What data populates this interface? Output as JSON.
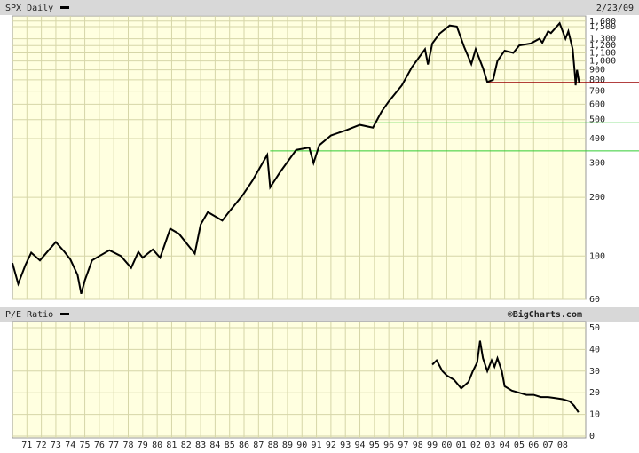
{
  "chart_data": [
    {
      "type": "line",
      "title": "SPX Daily",
      "date": "2/23/09",
      "log_y": true,
      "grid": true,
      "series": [
        {
          "name": "SPX Daily",
          "color": "#000000",
          "x": [
            1970.0,
            1970.4,
            1970.9,
            1971.3,
            1971.9,
            1972.5,
            1973.0,
            1973.6,
            1974.0,
            1974.5,
            1974.75,
            1975.0,
            1975.5,
            1976.0,
            1976.7,
            1977.5,
            1978.2,
            1978.7,
            1979.0,
            1979.7,
            1980.2,
            1980.9,
            1981.5,
            1982.6,
            1983.0,
            1983.5,
            1984.5,
            1985.0,
            1985.9,
            1986.6,
            1987.6,
            1987.8,
            1988.5,
            1989.6,
            1990.5,
            1990.8,
            1991.2,
            1992.0,
            1993.0,
            1994.0,
            1994.9,
            1995.5,
            1996.0,
            1996.9,
            1997.6,
            1998.5,
            1998.7,
            1999.0,
            1999.5,
            2000.2,
            2000.7,
            2001.2,
            2001.7,
            2002.0,
            2002.5,
            2002.8,
            2003.2,
            2003.5,
            2004.0,
            2004.6,
            2005.0,
            2005.8,
            2006.4,
            2006.6,
            2007.0,
            2007.2,
            2007.8,
            2008.2,
            2008.4,
            2008.7,
            2008.85,
            2008.9,
            2009.0,
            2009.15
          ],
          "values": [
            92,
            72,
            90,
            104,
            95,
            107,
            118,
            105,
            96,
            80,
            64,
            75,
            95,
            100,
            107,
            100,
            87,
            105,
            98,
            108,
            98,
            138,
            130,
            103,
            145,
            168,
            152,
            170,
            205,
            245,
            330,
            225,
            270,
            350,
            360,
            300,
            370,
            415,
            440,
            470,
            455,
            550,
            620,
            750,
            930,
            1150,
            960,
            1230,
            1380,
            1520,
            1500,
            1180,
            965,
            1150,
            920,
            780,
            800,
            1000,
            1130,
            1100,
            1200,
            1230,
            1300,
            1240,
            1420,
            1390,
            1560,
            1300,
            1420,
            1150,
            850,
            750,
            900,
            770
          ]
        }
      ],
      "xlim": [
        1970,
        2009.6
      ],
      "xticks": [
        1971,
        1972,
        1973,
        1974,
        1975,
        1976,
        1977,
        1978,
        1979,
        1980,
        1981,
        1982,
        1983,
        1984,
        1985,
        1986,
        1987,
        1988,
        1989,
        1990,
        1991,
        1992,
        1993,
        1994,
        1995,
        1996,
        1997,
        1998,
        1999,
        2000,
        2001,
        2002,
        2003,
        2004,
        2005,
        2006,
        2007,
        2008
      ],
      "ylim": [
        60,
        1700
      ],
      "yticks": [
        60,
        100,
        200,
        300,
        400,
        500,
        600,
        700,
        800,
        900,
        {
          "value": 1000,
          "label": "1,000"
        },
        {
          "value": 1100,
          "label": "1,100"
        },
        {
          "value": 1200,
          "label": "1,200"
        },
        {
          "value": 1300,
          "label": "1,300"
        },
        {
          "value": 1500,
          "label": "1,500"
        },
        {
          "value": 1600,
          "label": "1,600"
        }
      ],
      "hlines": [
        {
          "value": 776,
          "color": "#990000",
          "from": 2002.8
        },
        {
          "value": 482,
          "color": "#33cc33",
          "from": 1994.6
        },
        {
          "value": 346,
          "color": "#33cc33",
          "from": 1987.8
        }
      ]
    },
    {
      "type": "line",
      "title": "P/E Ratio",
      "source": "©BigCharts.com",
      "grid": true,
      "series": [
        {
          "name": "P/E Ratio",
          "color": "#000000",
          "x": [
            1999.0,
            1999.3,
            1999.7,
            2000.0,
            2000.5,
            2001.0,
            2001.5,
            2001.8,
            2002.1,
            2002.3,
            2002.5,
            2002.8,
            2003.1,
            2003.3,
            2003.5,
            2003.8,
            2004.0,
            2004.5,
            2005.0,
            2005.5,
            2006.0,
            2006.5,
            2007.0,
            2007.5,
            2008.0,
            2008.5,
            2008.8,
            2009.1
          ],
          "values": [
            33,
            35,
            30,
            28,
            26,
            22,
            25,
            30,
            34,
            44,
            36,
            30,
            35,
            32,
            36,
            30,
            23,
            21,
            20,
            19,
            19,
            18,
            18,
            17.5,
            17,
            16,
            14,
            11
          ]
        }
      ],
      "xlim": [
        1970,
        2009.6
      ],
      "xticks": [
        {
          "value": 1971,
          "label": "71"
        },
        {
          "value": 1972,
          "label": "72"
        },
        {
          "value": 1973,
          "label": "73"
        },
        {
          "value": 1974,
          "label": "74"
        },
        {
          "value": 1975,
          "label": "75"
        },
        {
          "value": 1976,
          "label": "76"
        },
        {
          "value": 1977,
          "label": "77"
        },
        {
          "value": 1978,
          "label": "78"
        },
        {
          "value": 1979,
          "label": "79"
        },
        {
          "value": 1980,
          "label": "80"
        },
        {
          "value": 1981,
          "label": "81"
        },
        {
          "value": 1982,
          "label": "82"
        },
        {
          "value": 1983,
          "label": "83"
        },
        {
          "value": 1984,
          "label": "84"
        },
        {
          "value": 1985,
          "label": "85"
        },
        {
          "value": 1986,
          "label": "86"
        },
        {
          "value": 1987,
          "label": "87"
        },
        {
          "value": 1988,
          "label": "88"
        },
        {
          "value": 1989,
          "label": "89"
        },
        {
          "value": 1990,
          "label": "90"
        },
        {
          "value": 1991,
          "label": "91"
        },
        {
          "value": 1992,
          "label": "92"
        },
        {
          "value": 1993,
          "label": "93"
        },
        {
          "value": 1994,
          "label": "94"
        },
        {
          "value": 1995,
          "label": "95"
        },
        {
          "value": 1996,
          "label": "96"
        },
        {
          "value": 1997,
          "label": "97"
        },
        {
          "value": 1998,
          "label": "98"
        },
        {
          "value": 1999,
          "label": "99"
        },
        {
          "value": 2000,
          "label": "00"
        },
        {
          "value": 2001,
          "label": "01"
        },
        {
          "value": 2002,
          "label": "02"
        },
        {
          "value": 2003,
          "label": "03"
        },
        {
          "value": 2004,
          "label": "04"
        },
        {
          "value": 2005,
          "label": "05"
        },
        {
          "value": 2006,
          "label": "06"
        },
        {
          "value": 2007,
          "label": "07"
        },
        {
          "value": 2008,
          "label": "08"
        }
      ],
      "ylim": [
        0,
        50
      ],
      "yticks": [
        0,
        10,
        20,
        30,
        40,
        50
      ]
    }
  ]
}
